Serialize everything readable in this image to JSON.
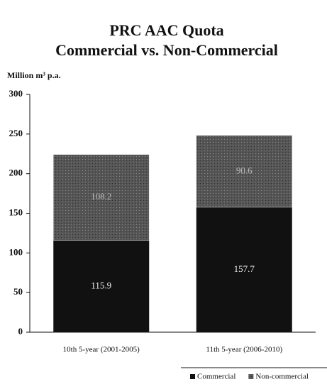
{
  "chart_data": {
    "type": "stacked_bar",
    "title": [
      "PRC AAC Quota",
      "Commercial vs. Non-Commercial"
    ],
    "y_label": "Million m³ p.a.",
    "categories": [
      "10th 5-year (2001-2005)",
      "11th 5-year (2006-2010)"
    ],
    "series": [
      {
        "name": "Commercial",
        "color": "#111111",
        "values": [
          115.9,
          157.7
        ]
      },
      {
        "name": "Non-commercial",
        "color": "#555555",
        "values": [
          108.2,
          90.6
        ]
      }
    ],
    "ylim": [
      0,
      300
    ],
    "yticks": [
      0,
      50,
      100,
      150,
      200,
      250,
      300
    ],
    "legend": "bottom-right"
  }
}
